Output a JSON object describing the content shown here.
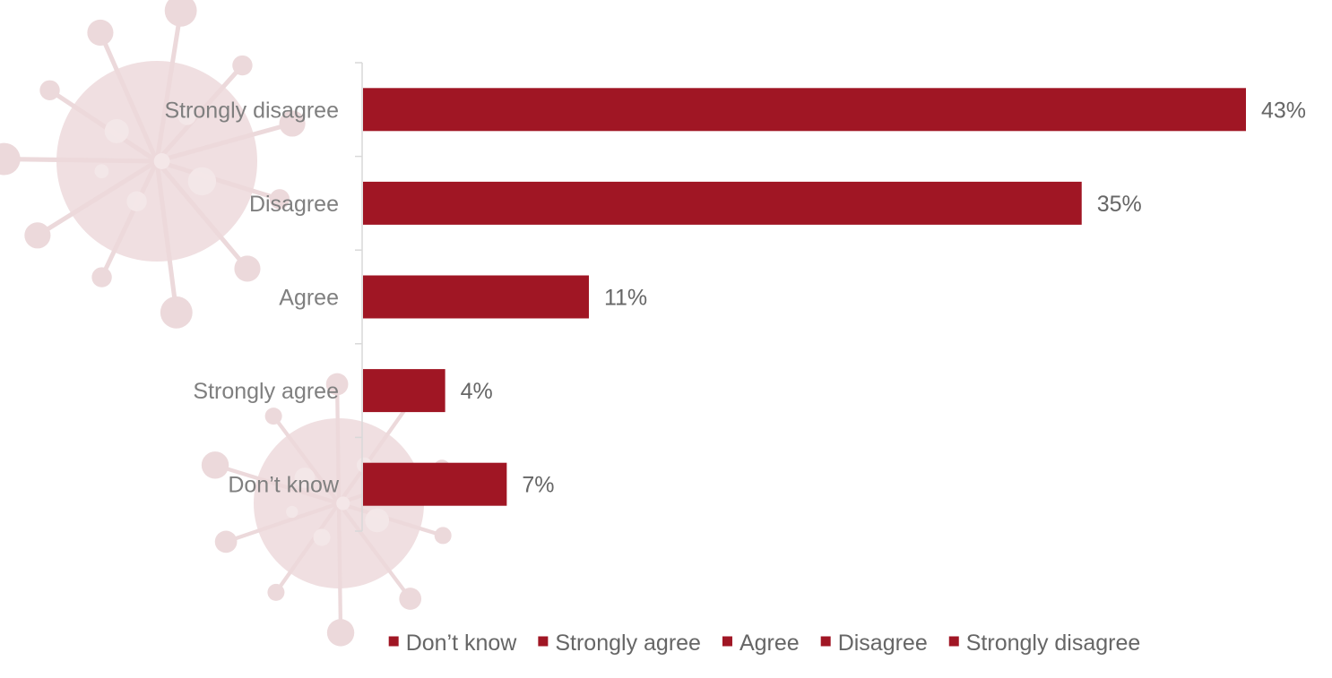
{
  "colors": {
    "bar": "#a01624",
    "axis": "#d9d9d9",
    "virus": "#e6cccf"
  },
  "background_icon": "virus-icon",
  "chart_data": {
    "type": "bar",
    "orientation": "horizontal",
    "categories": [
      "Strongly disagree",
      "Disagree",
      "Agree",
      "Strongly agree",
      "Don’t know"
    ],
    "values": [
      43,
      35,
      11,
      4,
      7
    ],
    "value_labels": [
      "43%",
      "35%",
      "11%",
      "4%",
      "7%"
    ],
    "unit": "%",
    "xlim": [
      0,
      43
    ],
    "grid": false,
    "legend": {
      "placement": "bottom",
      "entries": [
        "Don’t know",
        "Strongly agree",
        "Agree",
        "Disagree",
        "Strongly disagree"
      ]
    }
  }
}
